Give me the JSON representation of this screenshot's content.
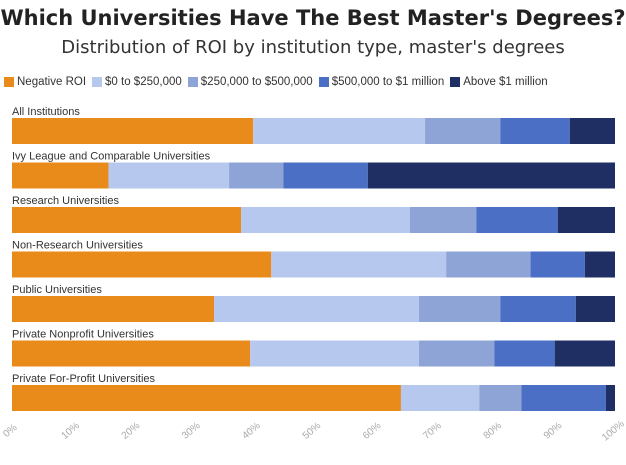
{
  "title": "Which Universities Have The Best Master's Degrees?",
  "subtitle": "Distribution of ROI by institution type, master's degrees",
  "colors": {
    "negative_roi": "#e88b1a",
    "0_to_250k": "#b7c8ee",
    "250k_to_500k": "#8ea3d6",
    "500k_to_1m": "#4a6fc4",
    "above_1m": "#1f2f63"
  },
  "chart_data": {
    "type": "bar",
    "orientation": "horizontal",
    "stacked": true,
    "normalized": true,
    "title": "Which Universities Have The Best Master's Degrees?",
    "subtitle": "Distribution of ROI by institution type, master's degrees",
    "legend_position": "top-left",
    "grid": false,
    "xlim": [
      0,
      100
    ],
    "xticks": [
      "0%",
      "10%",
      "20%",
      "30%",
      "40%",
      "50%",
      "60%",
      "70%",
      "80%",
      "90%",
      "100%"
    ],
    "categories": [
      "All Institutions",
      "Ivy League and Comparable Universities",
      "Research Universities",
      "Non-Research Universities",
      "Public Universities",
      "Private Nonprofit Universities",
      "Private For-Profit Universities"
    ],
    "series": [
      {
        "name": "Negative ROI",
        "color": "#e88b1a",
        "values": [
          40,
          16,
          38,
          43,
          33.5,
          39.5,
          64.5
        ]
      },
      {
        "name": "$0 to $250,000",
        "color": "#b7c8ee",
        "values": [
          28.5,
          20,
          28,
          29,
          34,
          28,
          13
        ]
      },
      {
        "name": "$250,000 to $500,000",
        "color": "#8ea3d6",
        "values": [
          12.5,
          9,
          11,
          14,
          13.5,
          12.5,
          7
        ]
      },
      {
        "name": "$500,000 to $1 million",
        "color": "#4a6fc4",
        "values": [
          11.5,
          14,
          13.5,
          9,
          12.5,
          10,
          14
        ]
      },
      {
        "name": "Above $1 million",
        "color": "#1f2f63",
        "values": [
          7.5,
          41,
          9.5,
          5,
          6.5,
          10,
          1.5
        ]
      }
    ]
  }
}
